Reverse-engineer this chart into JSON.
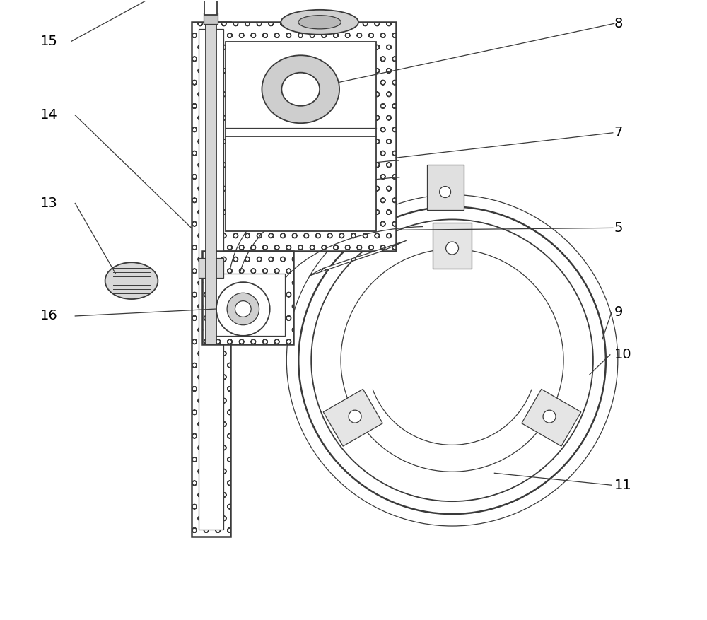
{
  "bg_color": "#ffffff",
  "line_color": "#3a3a3a",
  "fig_width": 10.0,
  "fig_height": 8.77,
  "dpi": 100
}
